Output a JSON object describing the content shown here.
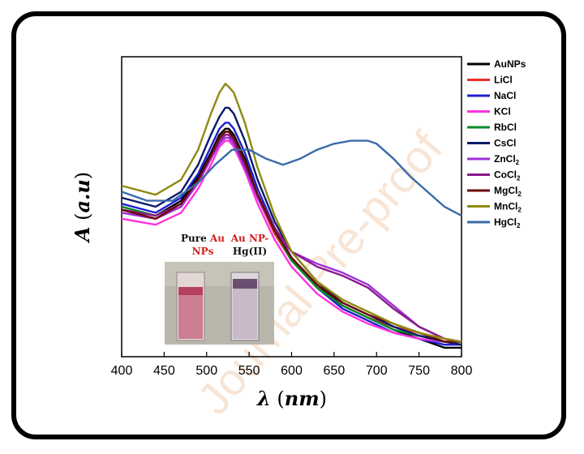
{
  "chart_data": {
    "type": "line",
    "xlabel_symbol": "λ",
    "xlabel_unit": "nm",
    "ylabel_symbol": "A",
    "ylabel_unit": "a.u",
    "xlim": [
      400,
      800
    ],
    "ylim": [
      0,
      1
    ],
    "x_ticks": [
      "400",
      "450",
      "500",
      "550",
      "600",
      "650",
      "700",
      "750",
      "800"
    ],
    "legend_position": "right-outside",
    "grid": false,
    "series": [
      {
        "name": "AuNPs",
        "sub": "",
        "color": "#000000",
        "x": [
          400,
          440,
          470,
          490,
          505,
          515,
          522,
          526,
          532,
          545,
          560,
          580,
          600,
          630,
          660,
          690,
          720,
          750,
          780,
          800
        ],
        "y": [
          0.5,
          0.47,
          0.52,
          0.6,
          0.68,
          0.74,
          0.76,
          0.76,
          0.74,
          0.66,
          0.54,
          0.42,
          0.33,
          0.24,
          0.17,
          0.13,
          0.09,
          0.06,
          0.03,
          0.03
        ]
      },
      {
        "name": "LiCl",
        "sub": "",
        "color": "#e8302c",
        "x": [
          400,
          440,
          470,
          490,
          505,
          515,
          522,
          526,
          532,
          545,
          560,
          580,
          600,
          630,
          660,
          690,
          720,
          750,
          780,
          800
        ],
        "y": [
          0.49,
          0.46,
          0.5,
          0.58,
          0.66,
          0.72,
          0.74,
          0.74,
          0.72,
          0.64,
          0.53,
          0.41,
          0.32,
          0.23,
          0.17,
          0.13,
          0.1,
          0.08,
          0.05,
          0.05
        ]
      },
      {
        "name": "NaCl",
        "sub": "",
        "color": "#1f1fd0",
        "x": [
          400,
          440,
          470,
          490,
          505,
          515,
          522,
          526,
          532,
          545,
          560,
          580,
          600,
          630,
          660,
          690,
          720,
          750,
          780,
          800
        ],
        "y": [
          0.51,
          0.48,
          0.53,
          0.61,
          0.7,
          0.76,
          0.78,
          0.78,
          0.76,
          0.68,
          0.56,
          0.43,
          0.33,
          0.23,
          0.16,
          0.12,
          0.08,
          0.06,
          0.04,
          0.04
        ]
      },
      {
        "name": "KCl",
        "sub": "",
        "color": "#ff33e0",
        "x": [
          400,
          440,
          470,
          490,
          505,
          515,
          522,
          526,
          532,
          545,
          560,
          580,
          600,
          630,
          660,
          690,
          720,
          750,
          780,
          800
        ],
        "y": [
          0.46,
          0.44,
          0.48,
          0.56,
          0.64,
          0.7,
          0.72,
          0.72,
          0.7,
          0.62,
          0.51,
          0.39,
          0.3,
          0.21,
          0.15,
          0.11,
          0.08,
          0.06,
          0.05,
          0.04
        ]
      },
      {
        "name": "RbCl",
        "sub": "",
        "color": "#0a8a2a",
        "x": [
          400,
          440,
          470,
          490,
          505,
          515,
          522,
          526,
          532,
          545,
          560,
          580,
          600,
          630,
          660,
          690,
          720,
          750,
          780,
          800
        ],
        "y": [
          0.5,
          0.47,
          0.51,
          0.59,
          0.67,
          0.73,
          0.75,
          0.75,
          0.73,
          0.65,
          0.54,
          0.42,
          0.32,
          0.23,
          0.17,
          0.13,
          0.09,
          0.07,
          0.05,
          0.04
        ]
      },
      {
        "name": "CsCl",
        "sub": "",
        "color": "#0a1a6a",
        "x": [
          400,
          440,
          470,
          490,
          505,
          515,
          522,
          526,
          532,
          545,
          560,
          580,
          600,
          630,
          660,
          690,
          720,
          750,
          780,
          800
        ],
        "y": [
          0.53,
          0.5,
          0.55,
          0.64,
          0.74,
          0.8,
          0.83,
          0.83,
          0.81,
          0.72,
          0.59,
          0.45,
          0.35,
          0.25,
          0.18,
          0.14,
          0.1,
          0.07,
          0.05,
          0.04
        ]
      },
      {
        "name": "ZnCl",
        "sub": "2",
        "color": "#9b30d8",
        "x": [
          400,
          440,
          470,
          490,
          505,
          515,
          522,
          526,
          532,
          545,
          560,
          580,
          600,
          630,
          660,
          690,
          720,
          750,
          780,
          800
        ],
        "y": [
          0.48,
          0.46,
          0.5,
          0.58,
          0.66,
          0.71,
          0.73,
          0.73,
          0.71,
          0.63,
          0.53,
          0.42,
          0.35,
          0.31,
          0.28,
          0.24,
          0.17,
          0.1,
          0.06,
          0.05
        ]
      },
      {
        "name": "CoCl",
        "sub": "2",
        "color": "#8a1a8a",
        "x": [
          400,
          440,
          470,
          490,
          505,
          515,
          522,
          526,
          532,
          545,
          560,
          580,
          600,
          630,
          660,
          690,
          720,
          750,
          780,
          800
        ],
        "y": [
          0.49,
          0.47,
          0.51,
          0.59,
          0.67,
          0.72,
          0.74,
          0.74,
          0.72,
          0.64,
          0.54,
          0.43,
          0.35,
          0.3,
          0.27,
          0.23,
          0.16,
          0.1,
          0.06,
          0.05
        ]
      },
      {
        "name": "MgCl",
        "sub": "2",
        "color": "#6a0a0a",
        "x": [
          400,
          440,
          470,
          490,
          505,
          515,
          522,
          526,
          532,
          545,
          560,
          580,
          600,
          630,
          660,
          690,
          720,
          750,
          780,
          800
        ],
        "y": [
          0.49,
          0.46,
          0.51,
          0.59,
          0.67,
          0.73,
          0.75,
          0.75,
          0.73,
          0.65,
          0.54,
          0.42,
          0.33,
          0.24,
          0.18,
          0.14,
          0.11,
          0.08,
          0.05,
          0.05
        ]
      },
      {
        "name": "MnCl",
        "sub": "2",
        "color": "#8f8a10",
        "x": [
          400,
          440,
          470,
          490,
          505,
          515,
          522,
          526,
          532,
          545,
          560,
          580,
          600,
          630,
          660,
          690,
          720,
          750,
          780,
          800
        ],
        "y": [
          0.57,
          0.54,
          0.59,
          0.69,
          0.81,
          0.88,
          0.91,
          0.9,
          0.88,
          0.78,
          0.63,
          0.47,
          0.35,
          0.25,
          0.19,
          0.15,
          0.11,
          0.08,
          0.06,
          0.05
        ]
      },
      {
        "name": "HgCl",
        "sub": "2",
        "color": "#3a6aa8",
        "x": [
          400,
          430,
          460,
          490,
          510,
          530,
          550,
          570,
          590,
          610,
          630,
          650,
          670,
          690,
          700,
          720,
          740,
          760,
          780,
          800
        ],
        "y": [
          0.55,
          0.52,
          0.52,
          0.58,
          0.64,
          0.69,
          0.69,
          0.66,
          0.64,
          0.66,
          0.69,
          0.71,
          0.72,
          0.72,
          0.71,
          0.66,
          0.6,
          0.55,
          0.5,
          0.47
        ]
      }
    ]
  },
  "inset": {
    "label_left_line1_a": "Pure",
    "label_left_line1_b": "Au",
    "label_left_line2": "NPs",
    "label_right_line1": "Au NP-",
    "label_right_line2": "Hg(II)"
  },
  "watermark": "Journal Pre-proof",
  "colors": {
    "accent_red": "#d22020"
  }
}
